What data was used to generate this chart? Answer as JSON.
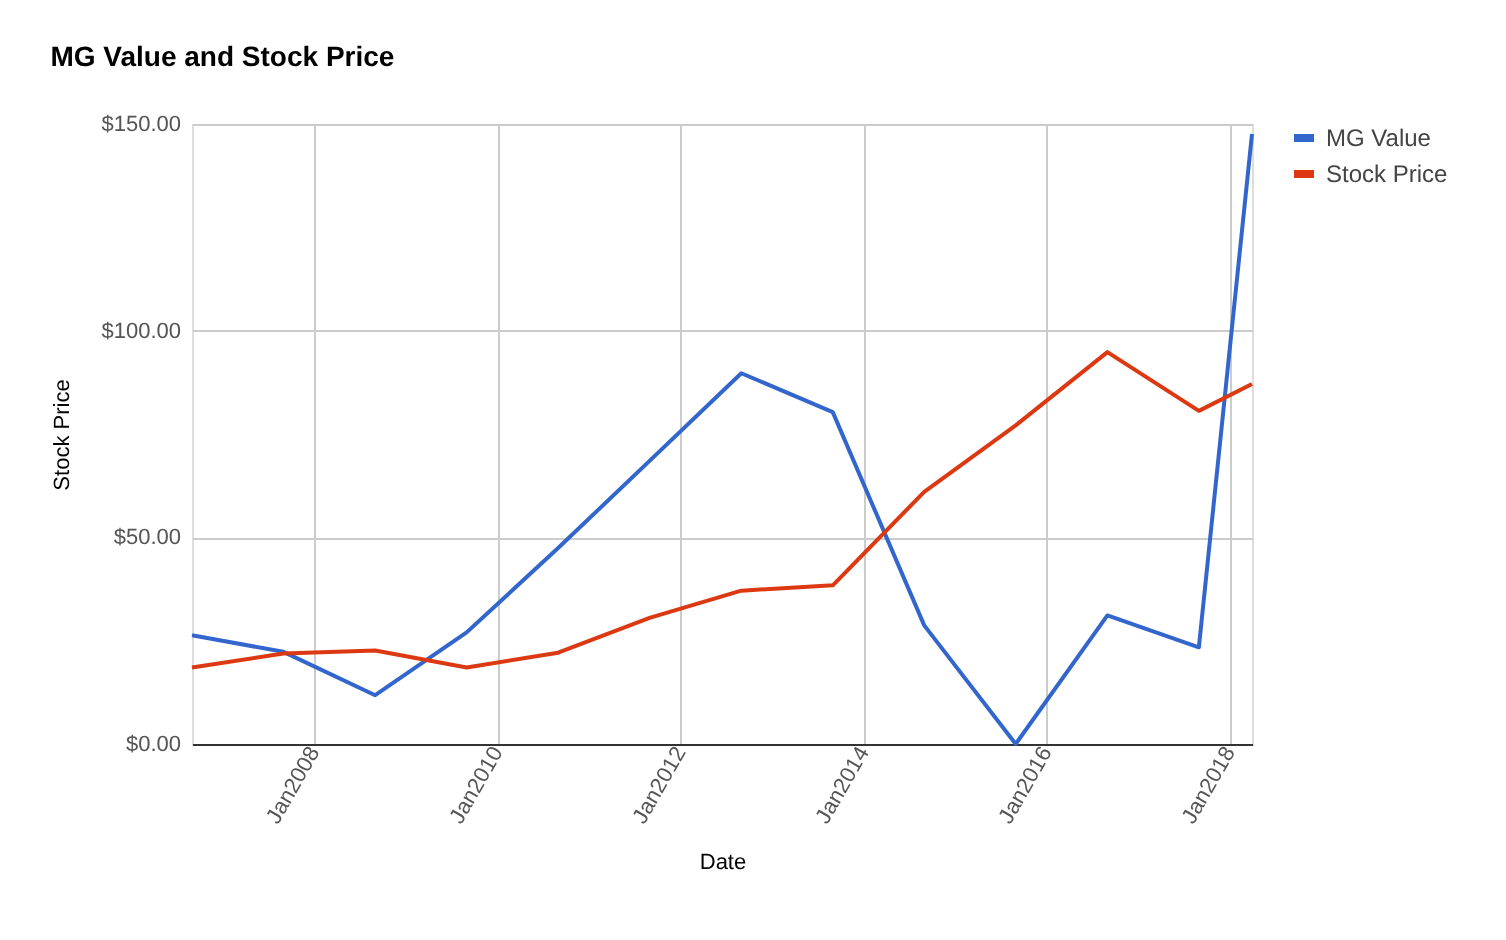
{
  "chart_data": {
    "type": "line",
    "title": "MG Value and Stock Price",
    "xlabel": "Date",
    "ylabel": "Stock Price",
    "x": [
      "2006-09",
      "2007-09",
      "2008-09",
      "2009-09",
      "2010-09",
      "2011-09",
      "2012-09",
      "2013-09",
      "2014-09",
      "2015-09",
      "2016-09",
      "2017-09",
      "2018-04"
    ],
    "series": [
      {
        "name": "MG Value",
        "color": "#3366cc",
        "values": [
          26.3,
          22.3,
          11.8,
          27,
          47.4,
          68.5,
          89.7,
          80.3,
          28.7,
          0,
          31.1,
          23.4,
          147.6
        ]
      },
      {
        "name": "Stock Price",
        "color": "#dc3912",
        "values": [
          18.5,
          21.9,
          22.6,
          18.5,
          22.1,
          30.5,
          37.1,
          38.4,
          61,
          77.1,
          94.8,
          80.6,
          87.1
        ]
      }
    ],
    "xlim": [
      "2006-09",
      "2018-04"
    ],
    "xticks": [
      {
        "value": "2008-01",
        "label": "Jan2008"
      },
      {
        "value": "2010-01",
        "label": "Jan2010"
      },
      {
        "value": "2012-01",
        "label": "Jan2012"
      },
      {
        "value": "2014-01",
        "label": "Jan2014"
      },
      {
        "value": "2016-01",
        "label": "Jan2016"
      },
      {
        "value": "2018-01",
        "label": "Jan2018"
      }
    ],
    "ylim": [
      0,
      150
    ],
    "yticks": [
      {
        "value": 0,
        "label": "$0.00"
      },
      {
        "value": 50,
        "label": "$50.00"
      },
      {
        "value": 100,
        "label": "$100.00"
      },
      {
        "value": 150,
        "label": "$150.00"
      }
    ],
    "grid": true,
    "legend": "top right",
    "marker": "none",
    "line_style": "solid"
  }
}
